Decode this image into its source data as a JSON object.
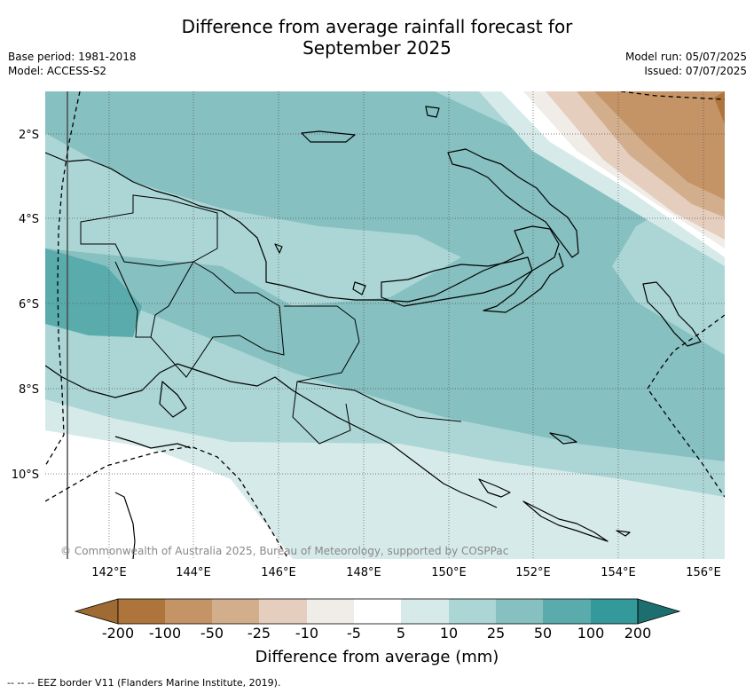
{
  "title_line1": "Difference from average rainfall forecast for",
  "title_line2": "September 2025",
  "meta_left": [
    "Base period: 1981-2018",
    "Model: ACCESS-S2"
  ],
  "meta_right": [
    "Model run: 05/07/2025",
    "Issued: 07/07/2025"
  ],
  "map": {
    "lat_ticks": [
      "2°S",
      "4°S",
      "6°S",
      "8°S",
      "10°S"
    ],
    "lon_ticks": [
      "142°E",
      "144°E",
      "146°E",
      "148°E",
      "150°E",
      "152°E",
      "154°E",
      "156°E"
    ],
    "copyright": "© Commonwealth of Australia 2025, Bureau of Meteorology, supported by COSPPac",
    "grid": true
  },
  "colorbar": {
    "title": "Difference from average (mm)",
    "labels": [
      "-200",
      "-100",
      "-50",
      "-25",
      "-10",
      "-5",
      "5",
      "10",
      "25",
      "50",
      "100",
      "200"
    ],
    "colors": [
      "#a06a33",
      "#ad743c",
      "#c49366",
      "#d3ae8d",
      "#e5cebd",
      "#f0ede9",
      "#ffffff",
      "#d6ebe9",
      "#acd6d6",
      "#86c0c0",
      "#5aacac",
      "#33999a",
      "#1d6e6e"
    ]
  },
  "footnote": "-- -- -- EEZ border V11 (Flanders Marine Institute, 2019)."
}
